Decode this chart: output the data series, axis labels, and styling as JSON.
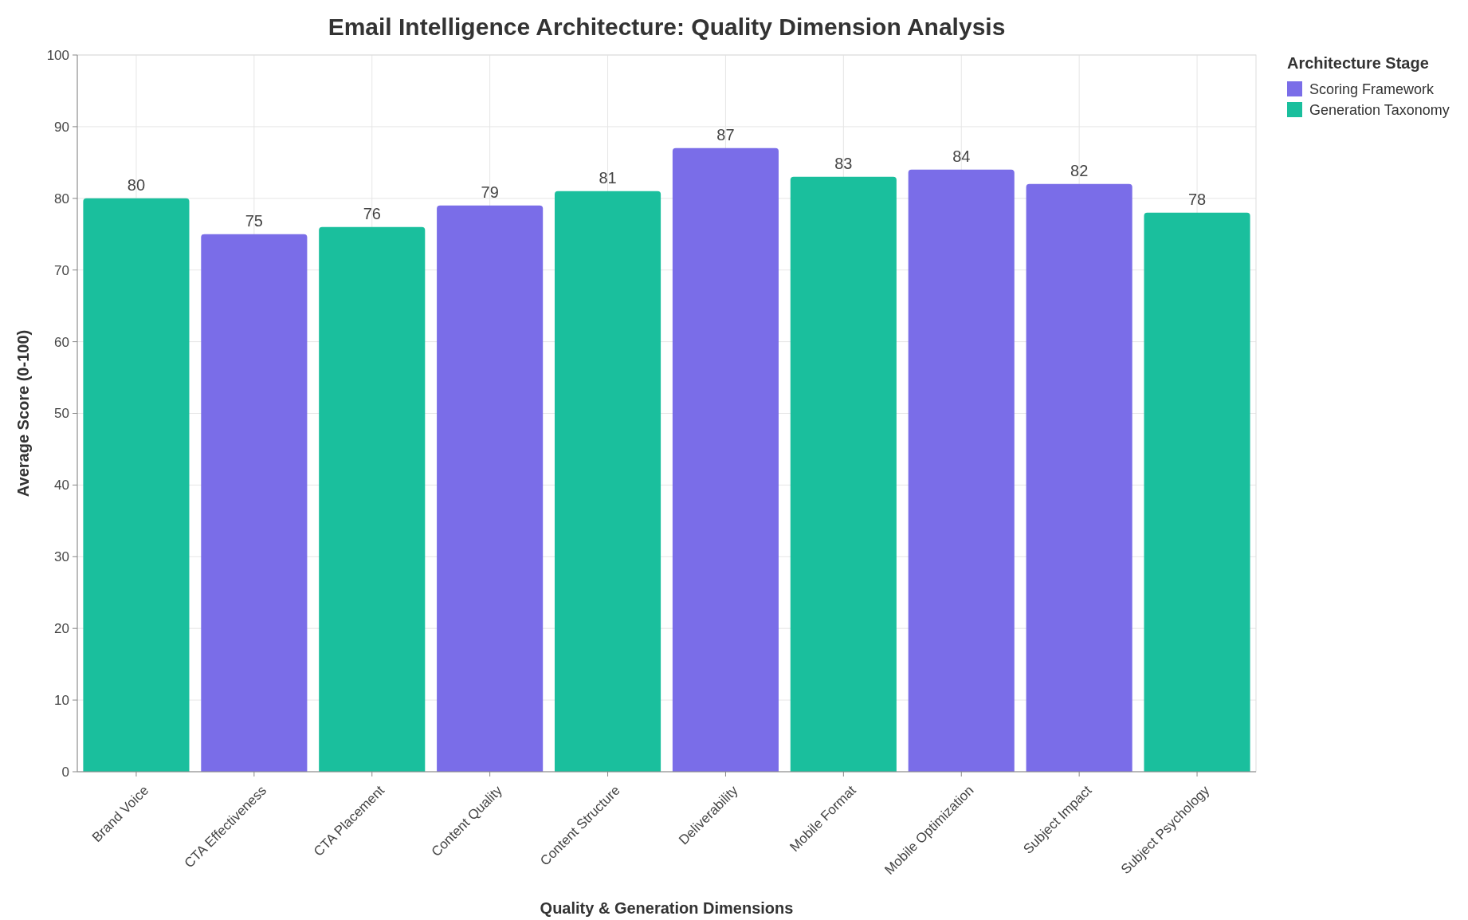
{
  "chart_data": {
    "type": "bar",
    "title": "Email Intelligence Architecture: Quality Dimension Analysis",
    "xlabel": "Quality & Generation Dimensions",
    "ylabel": "Average Score (0-100)",
    "legend_title": "Architecture Stage",
    "categories": [
      "Brand Voice",
      "CTA Effectiveness",
      "CTA Placement",
      "Content Quality",
      "Content Structure",
      "Deliverability",
      "Mobile Format",
      "Mobile Optimization",
      "Subject Impact",
      "Subject Psychology"
    ],
    "series": [
      {
        "name": "Scoring Framework",
        "color": "#7a6de8",
        "values": [
          null,
          75,
          null,
          79,
          null,
          87,
          null,
          84,
          82,
          null
        ]
      },
      {
        "name": "Generation Taxonomy",
        "color": "#1abf9d",
        "values": [
          80,
          null,
          76,
          null,
          81,
          null,
          83,
          null,
          null,
          78
        ]
      }
    ],
    "stacked": true,
    "ylim": [
      0,
      100
    ],
    "yticks": [
      0,
      10,
      20,
      30,
      40,
      50,
      60,
      70,
      80,
      90,
      100
    ],
    "grid": true,
    "legend": "top right",
    "data_labels": true
  }
}
